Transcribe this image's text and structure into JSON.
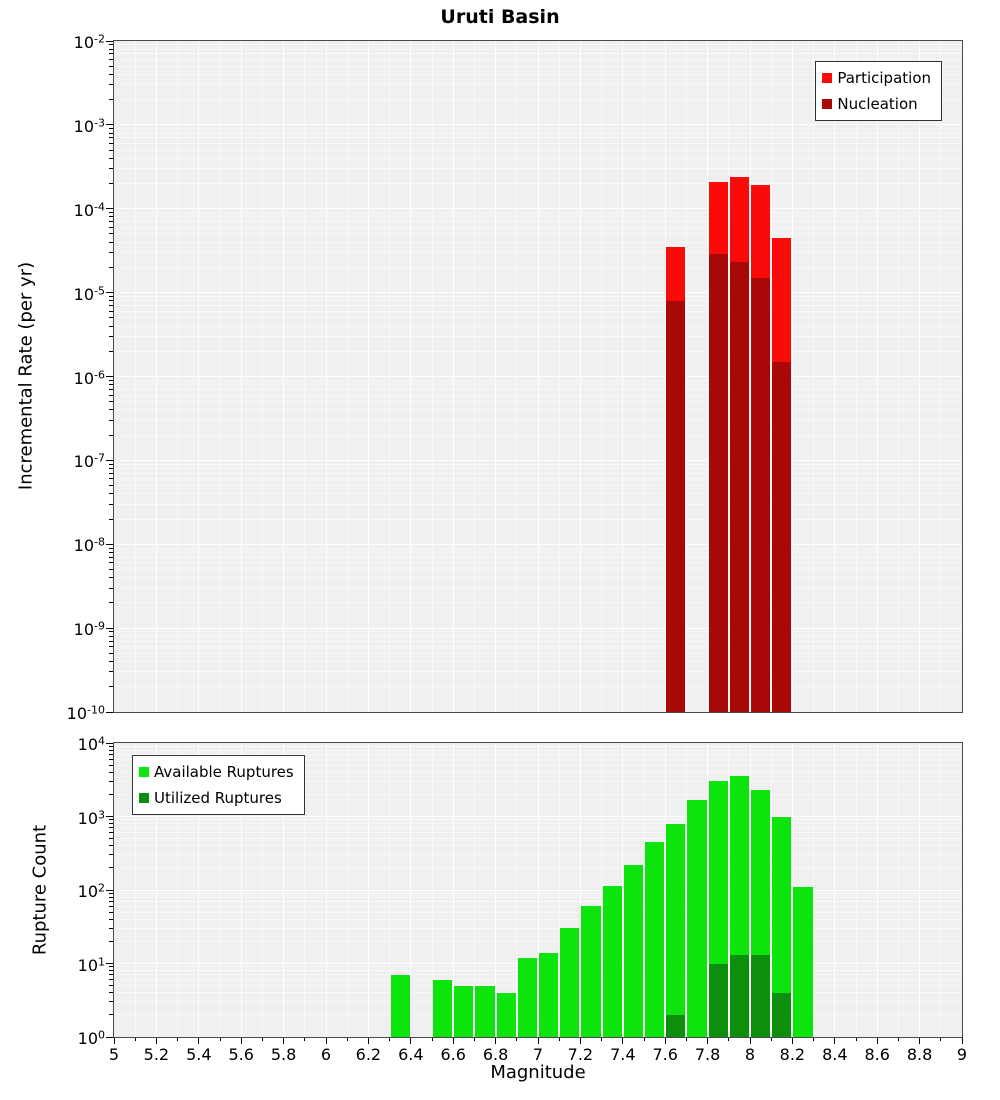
{
  "title": "Uruti Basin",
  "chart_data": [
    {
      "type": "bar",
      "title": "Uruti Basin",
      "ylabel": "Incremental Rate (per yr)",
      "xlabel": "Magnitude",
      "xlim": [
        5,
        9
      ],
      "ylim": [
        1e-10,
        0.01
      ],
      "ylog": true,
      "grid": true,
      "bin_width": 0.1,
      "legend_position": "top-right",
      "x_tick_labels": [
        "5",
        "5.2",
        "5.4",
        "5.6",
        "5.8",
        "6",
        "6.2",
        "6.4",
        "6.6",
        "6.8",
        "7",
        "7.2",
        "7.4",
        "7.6",
        "7.8",
        "8",
        "8.2",
        "8.4",
        "8.6",
        "8.8",
        "9"
      ],
      "y_tick_exponents": [
        -10,
        -9,
        -8,
        -7,
        -6,
        -5,
        -4,
        -3,
        -2
      ],
      "series": [
        {
          "name": "Participation",
          "color": "#fb0a0a",
          "x": [
            7.6,
            7.8,
            7.9,
            8.0,
            8.1
          ],
          "values": [
            3.5e-05,
            0.00021,
            0.00024,
            0.00019,
            4.5e-05
          ]
        },
        {
          "name": "Nucleation",
          "color": "#a80808",
          "x": [
            7.6,
            7.8,
            7.9,
            8.0,
            8.1
          ],
          "values": [
            8e-06,
            2.9e-05,
            2.3e-05,
            1.5e-05,
            1.5e-06
          ]
        }
      ]
    },
    {
      "type": "bar",
      "title": "",
      "ylabel": "Rupture Count",
      "xlabel": "Magnitude",
      "xlim": [
        5,
        9
      ],
      "ylim": [
        1,
        10000.0
      ],
      "ylog": true,
      "grid": true,
      "bin_width": 0.1,
      "legend_position": "top-left",
      "x_tick_labels": [
        "5",
        "5.2",
        "5.4",
        "5.6",
        "5.8",
        "6",
        "6.2",
        "6.4",
        "6.6",
        "6.8",
        "7",
        "7.2",
        "7.4",
        "7.6",
        "7.8",
        "8",
        "8.2",
        "8.4",
        "8.6",
        "8.8",
        "9"
      ],
      "y_tick_exponents": [
        0,
        1,
        2,
        3,
        4
      ],
      "series": [
        {
          "name": "Available Ruptures",
          "color": "#0de30d",
          "x": [
            6.3,
            6.5,
            6.6,
            6.7,
            6.8,
            6.9,
            7.0,
            7.1,
            7.2,
            7.3,
            7.4,
            7.5,
            7.6,
            7.7,
            7.8,
            7.9,
            8.0,
            8.1,
            8.2
          ],
          "values": [
            7,
            6,
            5,
            5,
            4,
            12,
            14,
            30,
            60,
            115,
            220,
            450,
            800,
            1700,
            3000,
            3600,
            2300,
            1000,
            110
          ]
        },
        {
          "name": "Utilized Ruptures",
          "color": "#0c8f0c",
          "x": [
            7.6,
            7.8,
            7.9,
            8.0,
            8.1
          ],
          "values": [
            2,
            10,
            13,
            13,
            4
          ]
        }
      ]
    }
  ]
}
